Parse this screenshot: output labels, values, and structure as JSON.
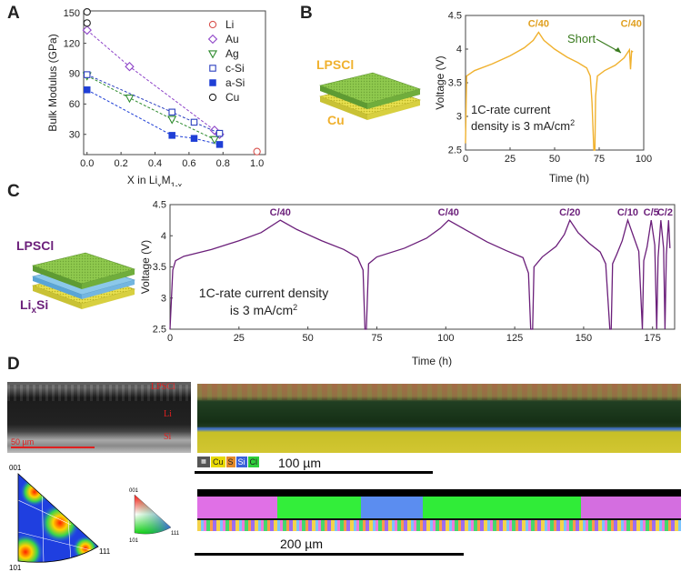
{
  "panels": {
    "A": "A",
    "B": "B",
    "C": "C",
    "D": "D"
  },
  "chart_data": [
    {
      "id": "A",
      "type": "scatter",
      "xlabel": "X in Li",
      "xlabel_sub1": "x",
      "xlabel_mid": "M",
      "xlabel_sub2": "1-x",
      "ylabel": "Bulk Modulus (GPa)",
      "xlim": [
        -0.02,
        1.05
      ],
      "ylim": [
        10,
        152
      ],
      "xticks": [
        "0.0",
        "0.2",
        "0.4",
        "0.6",
        "0.8",
        "1.0"
      ],
      "xtick_values": [
        0.0,
        0.2,
        0.4,
        0.6,
        0.8,
        1.0
      ],
      "yticks": [
        "30",
        "60",
        "90",
        "120",
        "150"
      ],
      "ytick_values": [
        30,
        60,
        90,
        120,
        150
      ],
      "legend": "top-right",
      "series": [
        {
          "name": "Li",
          "color": "#d9534f",
          "marker": "circle-open",
          "dashed": false,
          "points": [
            [
              1.0,
              13
            ]
          ]
        },
        {
          "name": "Au",
          "color": "#8e44c8",
          "marker": "diamond-open",
          "dashed": true,
          "points": [
            [
              0.0,
              133
            ],
            [
              0.25,
              97
            ],
            [
              0.75,
              34
            ],
            [
              0.78,
              30
            ]
          ]
        },
        {
          "name": "Ag",
          "color": "#2e8b2e",
          "marker": "triangle-open",
          "dashed": true,
          "points": [
            [
              0.0,
              88
            ],
            [
              0.25,
              66
            ],
            [
              0.5,
              45
            ],
            [
              0.75,
              25
            ]
          ]
        },
        {
          "name": "c-Si",
          "color": "#2b3fbf",
          "marker": "square-open",
          "dashed": true,
          "points": [
            [
              0.0,
              89
            ],
            [
              0.5,
              52
            ],
            [
              0.63,
              42
            ],
            [
              0.78,
              31
            ]
          ]
        },
        {
          "name": "a-Si",
          "color": "#1f3fd6",
          "marker": "square-filled",
          "dashed": true,
          "points": [
            [
              0.0,
              74
            ],
            [
              0.5,
              29
            ],
            [
              0.63,
              26
            ],
            [
              0.78,
              20
            ]
          ]
        },
        {
          "name": "Cu",
          "color": "#222222",
          "marker": "circle-open",
          "dashed": false,
          "points": [
            [
              0.0,
              151
            ],
            [
              0.0,
              140
            ]
          ]
        }
      ]
    },
    {
      "id": "B",
      "type": "line",
      "xlabel": "Time (h)",
      "ylabel": "Voltage (V)",
      "xlim": [
        0,
        100
      ],
      "ylim": [
        2.5,
        4.5
      ],
      "xticks": [
        "0",
        "25",
        "50",
        "75",
        "100"
      ],
      "xtick_values": [
        0,
        25,
        50,
        75,
        100
      ],
      "yticks": [
        "2.5",
        "3",
        "3.5",
        "4",
        "4.5"
      ],
      "ytick_values": [
        2.5,
        3.0,
        3.5,
        4.0,
        4.5
      ],
      "line_color": "#f0b12e",
      "series_points": [
        [
          0,
          2.6
        ],
        [
          0.6,
          3.6
        ],
        [
          5,
          3.68
        ],
        [
          15,
          3.78
        ],
        [
          25,
          3.9
        ],
        [
          33,
          4.02
        ],
        [
          38,
          4.13
        ],
        [
          41,
          4.25
        ],
        [
          44,
          4.13
        ],
        [
          50,
          4.0
        ],
        [
          57,
          3.88
        ],
        [
          63,
          3.8
        ],
        [
          68,
          3.72
        ],
        [
          70,
          3.6
        ],
        [
          71,
          3.2
        ],
        [
          72,
          2.5
        ],
        [
          72.6,
          2.5
        ],
        [
          73,
          3.3
        ],
        [
          74,
          3.6
        ],
        [
          78,
          3.68
        ],
        [
          84,
          3.76
        ],
        [
          89,
          3.87
        ],
        [
          92,
          3.99
        ],
        [
          92.6,
          3.7
        ],
        [
          93.2,
          3.97
        ],
        [
          94,
          3.96
        ]
      ],
      "annotations": {
        "rate1": "C/40",
        "rate2": "C/40",
        "short": "Short",
        "density_line1": "1C-rate current",
        "density_line2_pre": "density is 3 mA/cm",
        "density_sup": "2"
      },
      "schematic": {
        "top_label": "LPSCl",
        "bottom_label": "Cu"
      }
    },
    {
      "id": "C",
      "type": "line",
      "xlabel": "Time (h)",
      "ylabel": "Voltage (V)",
      "xlim": [
        0,
        183
      ],
      "ylim": [
        2.5,
        4.5
      ],
      "xticks": [
        "0",
        "25",
        "50",
        "75",
        "100",
        "125",
        "150",
        "175"
      ],
      "xtick_values": [
        0,
        25,
        50,
        75,
        100,
        125,
        150,
        175
      ],
      "yticks": [
        "2.5",
        "3",
        "3.5",
        "4",
        "4.5"
      ],
      "ytick_values": [
        2.5,
        3.0,
        3.5,
        4.0,
        4.5
      ],
      "line_color": "#6b1f7a",
      "series_points": [
        [
          0,
          2.5
        ],
        [
          1,
          3.45
        ],
        [
          2,
          3.6
        ],
        [
          5,
          3.67
        ],
        [
          15,
          3.78
        ],
        [
          25,
          3.92
        ],
        [
          33,
          4.05
        ],
        [
          40,
          4.25
        ],
        [
          46,
          4.1
        ],
        [
          55,
          3.92
        ],
        [
          63,
          3.78
        ],
        [
          68,
          3.65
        ],
        [
          70,
          3.45
        ],
        [
          70.7,
          2.5
        ],
        [
          71.2,
          2.5
        ],
        [
          72,
          3.55
        ],
        [
          75,
          3.66
        ],
        [
          85,
          3.8
        ],
        [
          93,
          3.96
        ],
        [
          98,
          4.12
        ],
        [
          101,
          4.25
        ],
        [
          107,
          4.1
        ],
        [
          115,
          3.9
        ],
        [
          122,
          3.76
        ],
        [
          128,
          3.65
        ],
        [
          130,
          3.4
        ],
        [
          130.8,
          2.5
        ],
        [
          131.5,
          2.5
        ],
        [
          132,
          3.5
        ],
        [
          135,
          3.66
        ],
        [
          140,
          3.83
        ],
        [
          143,
          4.02
        ],
        [
          145,
          4.25
        ],
        [
          148,
          4.05
        ],
        [
          152,
          3.88
        ],
        [
          156,
          3.74
        ],
        [
          158,
          3.55
        ],
        [
          159.5,
          2.5
        ],
        [
          160,
          2.5
        ],
        [
          160.5,
          3.55
        ],
        [
          162,
          3.7
        ],
        [
          164,
          3.92
        ],
        [
          166,
          4.25
        ],
        [
          168,
          4.0
        ],
        [
          170,
          3.75
        ],
        [
          171.3,
          2.5
        ],
        [
          171.8,
          3.6
        ],
        [
          173,
          3.82
        ],
        [
          174.5,
          4.25
        ],
        [
          175.8,
          3.85
        ],
        [
          176.5,
          2.5
        ],
        [
          177,
          3.65
        ],
        [
          178,
          4.25
        ],
        [
          179,
          3.8
        ],
        [
          179.5,
          2.5
        ],
        [
          180,
          3.7
        ],
        [
          180.8,
          4.25
        ],
        [
          181.3,
          3.8
        ]
      ],
      "rate_labels": [
        {
          "text": "C/40",
          "x": 40
        },
        {
          "text": "C/40",
          "x": 101
        },
        {
          "text": "C/20",
          "x": 145
        },
        {
          "text": "C/10",
          "x": 166
        },
        {
          "text": "C/5",
          "x": 174.5
        },
        {
          "text": "C/2",
          "x": 179.5
        }
      ],
      "density_line1": "1C-rate current density",
      "density_line2_pre": "is 3 mA/cm",
      "density_sup": "2",
      "schematic": {
        "top_label": "LPSCl",
        "bottom_label_main": "Li",
        "bottom_label_sub": "x",
        "bottom_label_tail": "Si"
      }
    }
  ],
  "panel_D": {
    "sem_labels": {
      "lpscl": "LPSCl",
      "li": "Li",
      "si": "Si",
      "scale": "50 µm"
    },
    "eds_legend": [
      "Cu",
      "S",
      "Si",
      "Cl"
    ],
    "eds_colors": [
      "#e8d900",
      "#e48a2a",
      "#3b62d8",
      "#2fcf3c"
    ],
    "scale_1": "100 µm",
    "scale_2": "200 µm",
    "ipf_large": {
      "c001": "001",
      "c101": "101",
      "c111": "111"
    },
    "ipf_small": {
      "c001": "001",
      "c101": "101",
      "c111": "111"
    }
  }
}
